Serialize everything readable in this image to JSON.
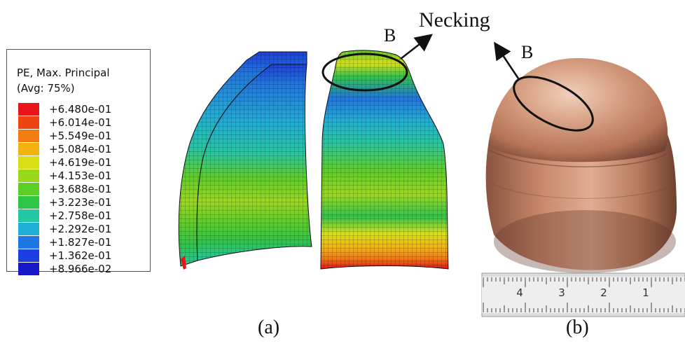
{
  "legend": {
    "title_line1": "PE, Max. Principal",
    "title_line2": "(Avg: 75%)",
    "levels": [
      {
        "label": "+6.480e-01",
        "color": "#e8141a"
      },
      {
        "label": "+6.014e-01",
        "color": "#ee4412"
      },
      {
        "label": "+5.549e-01",
        "color": "#f27d10"
      },
      {
        "label": "+5.084e-01",
        "color": "#f3b20e"
      },
      {
        "label": "+4.619e-01",
        "color": "#d8df14"
      },
      {
        "label": "+4.153e-01",
        "color": "#9ad81c"
      },
      {
        "label": "+3.688e-01",
        "color": "#5ccf24"
      },
      {
        "label": "+3.223e-01",
        "color": "#2ec646"
      },
      {
        "label": "+2.758e-01",
        "color": "#22c8a2"
      },
      {
        "label": "+2.292e-01",
        "color": "#1eaed8"
      },
      {
        "label": "+1.827e-01",
        "color": "#1e76e2"
      },
      {
        "label": "+1.362e-01",
        "color": "#1c40e0"
      },
      {
        "label": "+8.966e-02",
        "color": "#1818c8"
      }
    ]
  },
  "annotations": {
    "necking": "Necking",
    "marker_left": "B",
    "marker_right": "B"
  },
  "ruler": {
    "numbers": [
      "4",
      "3",
      "2",
      "1"
    ]
  },
  "captions": {
    "a": "(a)",
    "b": "(b)"
  },
  "colors": {
    "outline": "#111111",
    "copper_light": "#e8b9a0",
    "copper_mid": "#c98a6c",
    "copper_dark": "#7a4a36"
  }
}
